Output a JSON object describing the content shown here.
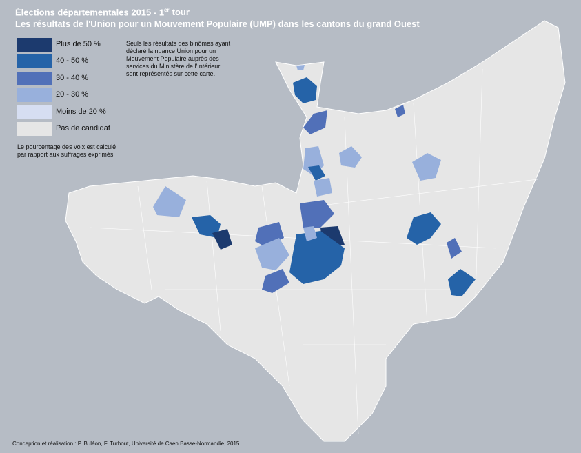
{
  "title": {
    "text": "Élections départementales 2015 - 1",
    "superscript": "er",
    "suffix": "tour"
  },
  "subtitle": "Les résultats de l'Union pour un Mouvement Populaire (UMP) dans les cantons du grand Ouest",
  "legend": [
    {
      "label": "Plus de 50 %",
      "color": "#1c3a6e"
    },
    {
      "label": "40 - 50 %",
      "color": "#2563a8"
    },
    {
      "label": "30 - 40 %",
      "color": "#5170b8"
    },
    {
      "label": "20 - 30 %",
      "color": "#98b0dc"
    },
    {
      "label": "Moins de 20 %",
      "color": "#d6def2"
    },
    {
      "label": "Pas de candidat",
      "color": "#e6e6e6"
    }
  ],
  "legend_note": [
    "Le pourcentage des voix est calculé",
    "par rapport aux suffrages exprimés"
  ],
  "map_note": [
    "Seuls les résultats des binômes ayant",
    "déclaré la nuance Union pour un",
    "Mouvement Populaire auprès des",
    "services du Ministère de l'Intérieur",
    "sont représentés sur cette carte."
  ],
  "credits": "Conception et réalisation : P. Buléon, F. Turbout, Université de Caen Basse-Normandie, 2015."
}
